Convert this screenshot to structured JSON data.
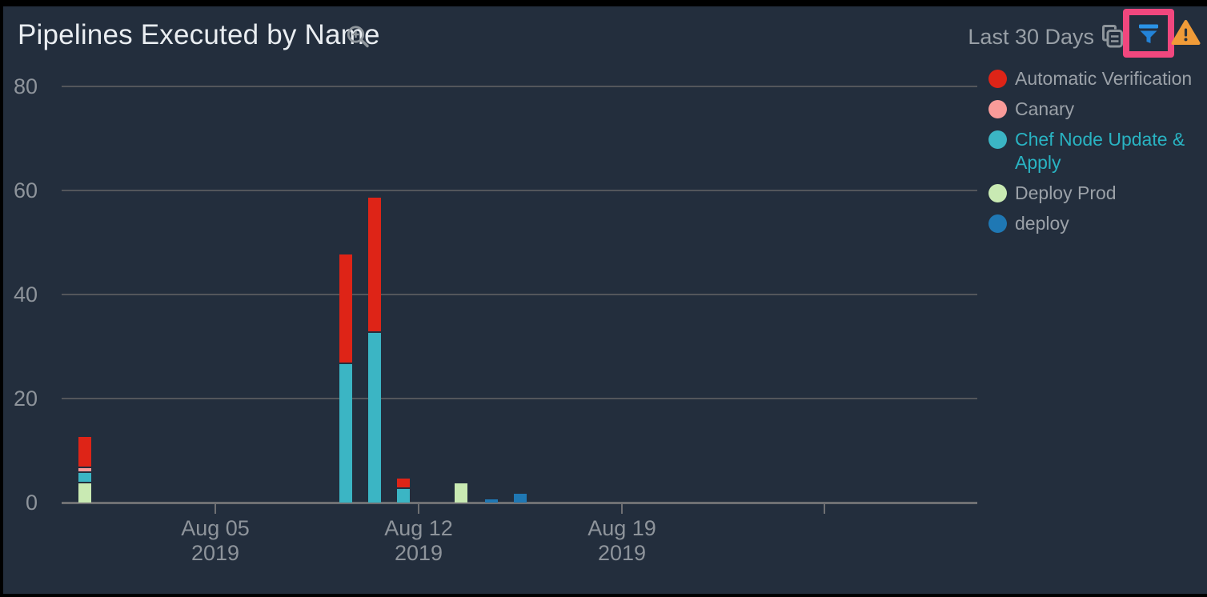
{
  "header": {
    "title": "Pipelines Executed by Name",
    "time_range": "Last 30 Days",
    "icons": {
      "zoom_icon": "zoom-in-magnifier",
      "copy_icon": "copy-duplicate",
      "filter_icon": "filter-funnel",
      "warning_icon": "warning-triangle"
    }
  },
  "annotation": {
    "highlighted_control": "filter-button",
    "highlight_color": "#f1477e"
  },
  "colors": {
    "background": "#232e3d",
    "grid": "#53565b",
    "axis": "#6f7073",
    "title_text": "#e9edf1",
    "muted_text": "#99a0a7",
    "axis_label_text": "#8e949b",
    "legend_text": "#9ba1a8",
    "legend_highlight_text": "#29b3c2",
    "icon_gray": "#8f969c",
    "filter_blue": "#2b93e6",
    "warning_orange": "#f09b38",
    "highlight_pink": "#f1477e"
  },
  "chart_data": {
    "type": "bar",
    "stacked": true,
    "title": "Pipelines Executed by Name",
    "xlabel": "",
    "ylabel": "",
    "ylim": [
      0,
      80
    ],
    "yticks": [
      0,
      20,
      40,
      60,
      80
    ],
    "grid": true,
    "legend_position": "right",
    "highlighted_legend_item": "Chef Node Update & Apply",
    "x": [
      "Jul 31",
      "Aug 09",
      "Aug 10",
      "Aug 11",
      "Aug 13",
      "Aug 14",
      "Aug 15"
    ],
    "series": [
      {
        "name": "Automatic Verification",
        "color": "#de2417",
        "values": [
          6,
          21,
          26,
          2,
          0,
          0,
          0
        ]
      },
      {
        "name": "Canary",
        "color": "#f99b99",
        "values": [
          1,
          0,
          0,
          0,
          0,
          0,
          0
        ]
      },
      {
        "name": "Chef Node Update & Apply",
        "color": "#3bb5c4",
        "values": [
          2,
          27,
          33,
          3,
          0,
          0,
          0
        ]
      },
      {
        "name": "Deploy Prod",
        "color": "#c9eab3",
        "values": [
          4,
          0,
          0,
          0,
          4,
          0,
          0
        ]
      },
      {
        "name": "deploy",
        "color": "#1f78b4",
        "values": [
          0,
          0,
          0,
          0,
          0,
          1,
          2
        ]
      }
    ],
    "bar_totals": [
      13,
      48,
      59,
      5,
      4,
      1,
      2
    ],
    "xtick_labels": [
      {
        "line1": "Aug 05",
        "line2": "2019"
      },
      {
        "line1": "Aug 12",
        "line2": "2019"
      },
      {
        "line1": "Aug 19",
        "line2": "2019"
      },
      {
        "line1": "",
        "line2": ""
      }
    ]
  }
}
